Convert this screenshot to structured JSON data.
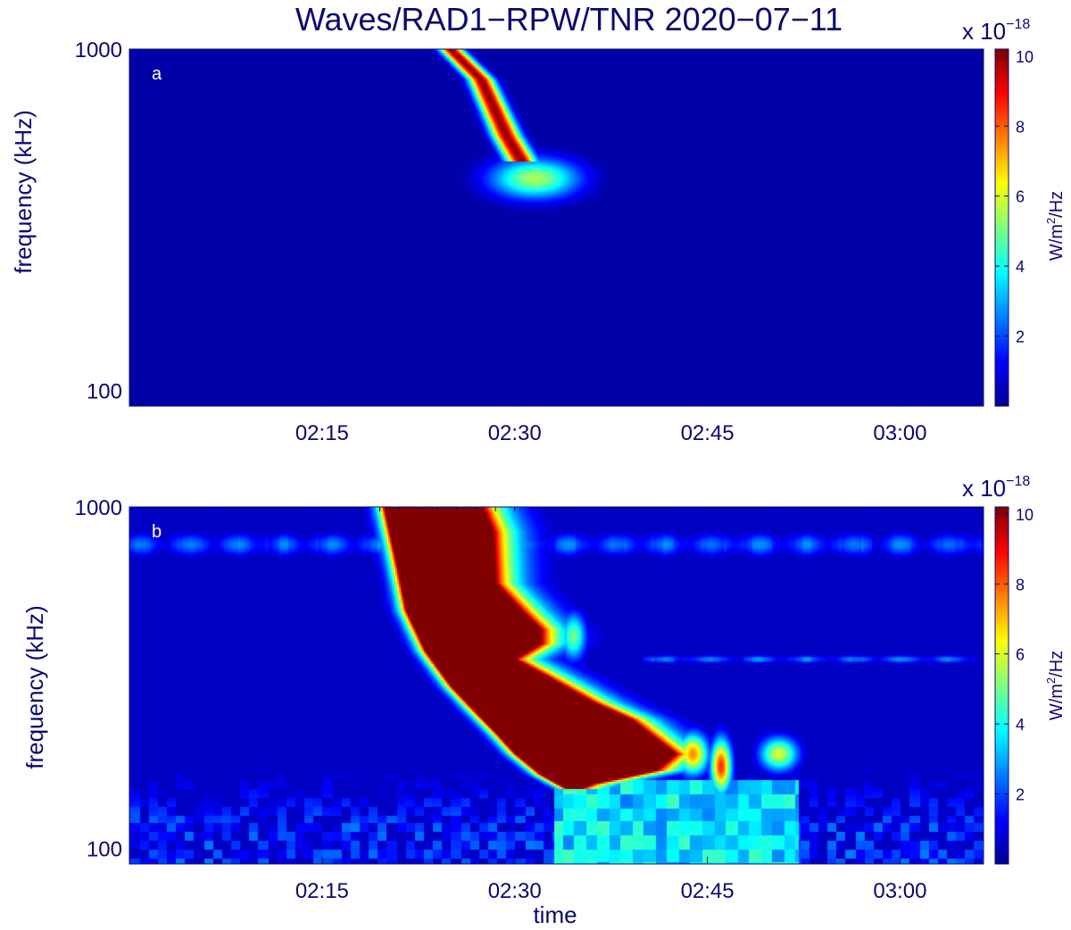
{
  "title": "Waves/RAD1−RPW/TNR 2020−07−11",
  "chart_data": [
    {
      "type": "heatmap",
      "panel_label": "a",
      "ylabel": "frequency (kHz)",
      "yscale": "log",
      "ylim": [
        90,
        1000
      ],
      "yticks": [
        {
          "value": 1000,
          "label": "1000"
        },
        {
          "value": 100,
          "label": "100"
        }
      ],
      "xlim_min": [
        0,
        66.5
      ],
      "xticks": [
        {
          "minutes": 15,
          "label": "02:15"
        },
        {
          "minutes": 30,
          "label": "02:30"
        },
        {
          "minutes": 45,
          "label": "02:45"
        },
        {
          "minutes": 60,
          "label": "03:00"
        }
      ],
      "colorbar": {
        "range": [
          0,
          10.2
        ],
        "ticks": [
          2,
          4,
          6,
          8,
          10
        ],
        "tick_labels": [
          "2",
          "4",
          "6",
          "8",
          "10"
        ],
        "unit_prefix": "W/m",
        "unit_sup": "2",
        "unit_suffix": "/Hz",
        "multiplier_base": "x 10",
        "multiplier_exp": "−18"
      },
      "background_level": 0.3,
      "features": [
        {
          "kind": "drift",
          "points": [
            [
              25,
              1000
            ],
            [
              27.3,
              820
            ],
            [
              29.3,
              560
            ],
            [
              30.5,
              470
            ]
          ],
          "peak": 10,
          "width_min": 1.3
        },
        {
          "kind": "blob",
          "t": 31.5,
          "f": 420,
          "peak": 5.5,
          "width_min": 3.5,
          "width_dec": 0.06
        }
      ]
    },
    {
      "type": "heatmap",
      "panel_label": "b",
      "xlabel": "time",
      "ylabel": "frequency (kHz)",
      "yscale": "log",
      "ylim": [
        90,
        1000
      ],
      "yticks": [
        {
          "value": 1000,
          "label": "1000"
        },
        {
          "value": 100,
          "label": "100"
        }
      ],
      "xlim_min": [
        0,
        66.5
      ],
      "xticks": [
        {
          "minutes": 15,
          "label": "02:15"
        },
        {
          "minutes": 30,
          "label": "02:30"
        },
        {
          "minutes": 45,
          "label": "02:45"
        },
        {
          "minutes": 60,
          "label": "03:00"
        }
      ],
      "colorbar": {
        "range": [
          0,
          10.2
        ],
        "ticks": [
          2,
          4,
          6,
          8,
          10
        ],
        "tick_labels": [
          "2",
          "4",
          "6",
          "8",
          "10"
        ],
        "unit_prefix": "W/m",
        "unit_sup": "2",
        "unit_suffix": "/Hz",
        "multiplier_base": "x 10",
        "multiplier_exp": "−18"
      },
      "background_level": 0.6,
      "lines": [
        {
          "f": 780,
          "level": 2.3,
          "width_dec": 0.035
        },
        {
          "f": 360,
          "level": 2.4,
          "width_dec": 0.012,
          "t_range": [
            40,
            66
          ]
        }
      ],
      "features": [
        {
          "kind": "saturated_band",
          "left_edge": [
            [
              1000,
              19.8
            ],
            [
              700,
              20.7
            ],
            [
              500,
              21.5
            ],
            [
              380,
              23
            ],
            [
              300,
              25
            ],
            [
              250,
              27
            ],
            [
              215,
              28.7
            ],
            [
              190,
              30
            ],
            [
              165,
              32
            ],
            [
              150,
              34
            ]
          ],
          "right_edge": [
            [
              1000,
              27.5
            ],
            [
              850,
              28.3
            ],
            [
              600,
              28.5
            ],
            [
              500,
              30.5
            ],
            [
              440,
              32
            ],
            [
              400,
              32
            ],
            [
              360,
              30
            ],
            [
              320,
              32.5
            ],
            [
              270,
              36
            ],
            [
              240,
              39
            ],
            [
              210,
              41
            ],
            [
              190,
              42.5
            ],
            [
              170,
              41
            ],
            [
              155,
              36
            ],
            [
              145,
              34
            ]
          ],
          "peak": 10,
          "halo_min": 2.5
        },
        {
          "kind": "blob",
          "t": 43.8,
          "f": 190,
          "peak": 7.5,
          "width_min": 1.2,
          "width_dec": 0.06
        },
        {
          "kind": "blob",
          "t": 46,
          "f": 175,
          "peak": 8.5,
          "width_min": 0.8,
          "width_dec": 0.08
        },
        {
          "kind": "blob",
          "t": 50.5,
          "f": 190,
          "peak": 6,
          "width_min": 1.5,
          "width_dec": 0.05
        },
        {
          "kind": "blob",
          "t": 34.5,
          "f": 420,
          "peak": 5,
          "width_min": 1,
          "width_dec": 0.07
        },
        {
          "kind": "low_freq_patches",
          "f_max": 200,
          "level": 2.5
        },
        {
          "kind": "low_freq_tail",
          "t_range": [
            33,
            52
          ],
          "f_max": 160,
          "level": 4.5
        }
      ]
    }
  ]
}
